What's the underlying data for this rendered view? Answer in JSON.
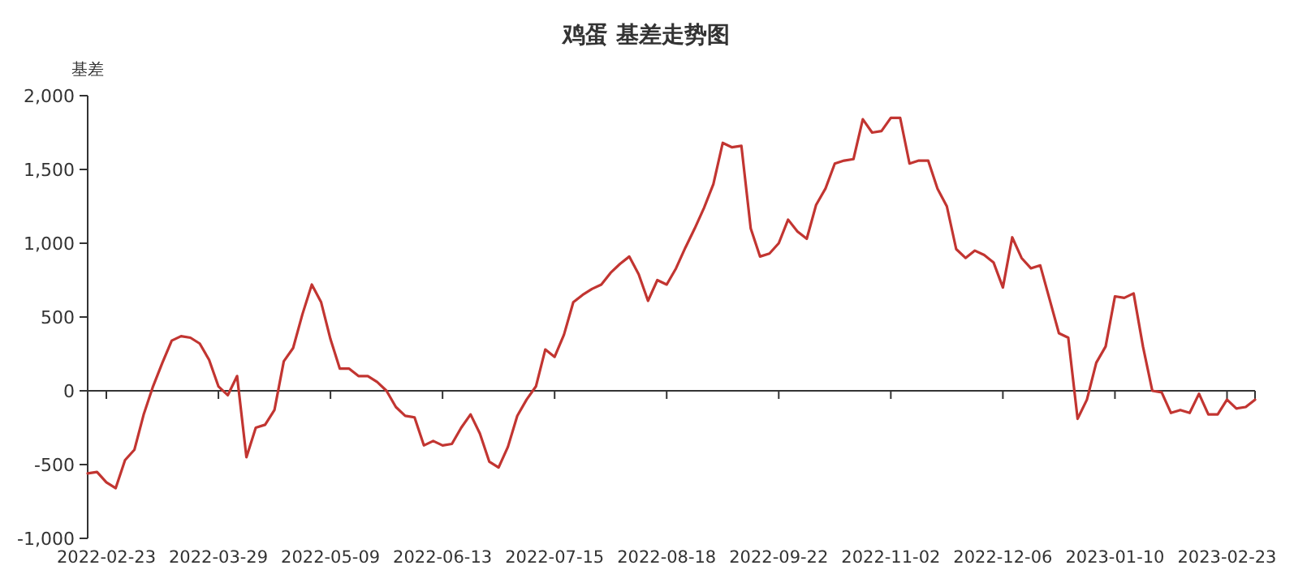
{
  "chart_data": {
    "type": "line",
    "title": "鸡蛋 基差走势图",
    "ylabel": "基差",
    "categories": [
      null,
      null,
      "2022-02-23",
      null,
      null,
      null,
      null,
      null,
      null,
      null,
      null,
      null,
      null,
      null,
      "2022-03-29",
      null,
      null,
      null,
      null,
      null,
      null,
      null,
      null,
      null,
      null,
      null,
      "2022-05-09",
      null,
      null,
      null,
      null,
      null,
      null,
      null,
      null,
      null,
      null,
      null,
      "2022-06-13",
      null,
      null,
      null,
      null,
      null,
      null,
      null,
      null,
      null,
      null,
      null,
      "2022-07-15",
      null,
      null,
      null,
      null,
      null,
      null,
      null,
      null,
      null,
      null,
      null,
      "2022-08-18",
      null,
      null,
      null,
      null,
      null,
      null,
      null,
      null,
      null,
      null,
      null,
      "2022-09-22",
      null,
      null,
      null,
      null,
      null,
      null,
      null,
      null,
      null,
      null,
      null,
      "2022-11-02",
      null,
      null,
      null,
      null,
      null,
      null,
      null,
      null,
      null,
      null,
      null,
      "2022-12-06",
      null,
      null,
      null,
      null,
      null,
      null,
      null,
      null,
      null,
      null,
      null,
      "2023-01-10",
      null,
      null,
      null,
      null,
      null,
      null,
      null,
      null,
      null,
      null,
      null,
      "2023-02-23",
      null,
      null,
      null
    ],
    "series": [
      {
        "color": "#c23531",
        "values": [
          -560,
          -550,
          -620,
          -660,
          -470,
          -400,
          -160,
          30,
          190,
          340,
          370,
          360,
          320,
          210,
          30,
          -30,
          100,
          -450,
          -250,
          -230,
          -130,
          200,
          290,
          520,
          720,
          600,
          350,
          150,
          150,
          100,
          100,
          60,
          0,
          -110,
          -170,
          -180,
          -370,
          -340,
          -370,
          -360,
          -250,
          -160,
          -290,
          -480,
          -520,
          -380,
          -170,
          -60,
          30,
          280,
          230,
          380,
          600,
          650,
          690,
          720,
          800,
          860,
          910,
          790,
          610,
          750,
          720,
          830,
          970,
          1100,
          1240,
          1400,
          1680,
          1650,
          1660,
          1100,
          910,
          930,
          1000,
          1160,
          1080,
          1030,
          1260,
          1370,
          1540,
          1560,
          1570,
          1840,
          1750,
          1760,
          1850,
          1850,
          1540,
          1560,
          1560,
          1370,
          1250,
          960,
          900,
          950,
          920,
          870,
          700,
          1040,
          900,
          830,
          850,
          620,
          390,
          360,
          -190,
          -60,
          190,
          300,
          640,
          630,
          660,
          300,
          0,
          -10,
          -150,
          -130,
          -150,
          -20,
          -160,
          -160,
          -60,
          -120,
          -110,
          -60
        ]
      }
    ],
    "ylim": [
      -1000,
      2000
    ],
    "yticks": [
      {
        "value": -1000,
        "label": "-1,000"
      },
      -500,
      0,
      500,
      {
        "value": 1000,
        "label": "1,000"
      },
      {
        "value": 1500,
        "label": "1,500"
      },
      {
        "value": 2000,
        "label": "2,000"
      }
    ],
    "line_style": "solid"
  }
}
